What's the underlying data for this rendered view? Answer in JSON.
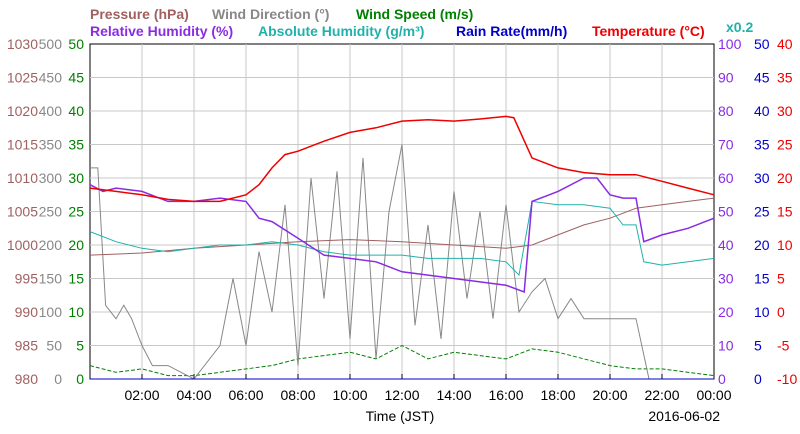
{
  "chart_data": {
    "type": "line",
    "xlabel": "Time (JST)",
    "date": "2016-06-02",
    "x_ticks": [
      "02:00",
      "04:00",
      "06:00",
      "08:00",
      "10:00",
      "12:00",
      "14:00",
      "16:00",
      "18:00",
      "20:00",
      "22:00",
      "00:00"
    ],
    "xlim_hours": [
      0,
      24
    ],
    "grid": true,
    "legend_items": [
      {
        "label": "Pressure (hPa)",
        "color": "#a06060"
      },
      {
        "label": "Wind Direction (°)",
        "color": "#888888"
      },
      {
        "label": "Wind Speed (m/s)",
        "color": "#008000"
      },
      {
        "label": "Relative Humidity (%)",
        "color": "#8a2be2"
      },
      {
        "label": "Absolute Humidity (g/m³)",
        "color": "#20b2aa"
      },
      {
        "label": "Rain Rate(mm/h)",
        "color": "#0000cc"
      },
      {
        "label": "Temperature (°C)",
        "color": "#ee0000"
      },
      {
        "label": "x0.2",
        "color": "#20b2aa"
      }
    ],
    "axes": [
      {
        "name": "Pressure (hPa)",
        "side": "left",
        "color": "#a06060",
        "ticks": [
          "1030",
          "1025",
          "1020",
          "1015",
          "1010",
          "1005",
          "1000",
          "995",
          "990",
          "985",
          "980"
        ],
        "ylim": [
          980,
          1030
        ]
      },
      {
        "name": "Wind Direction (°)",
        "side": "left",
        "color": "#888888",
        "ticks": [
          "500",
          "450",
          "400",
          "350",
          "300",
          "250",
          "200",
          "150",
          "100",
          "50",
          "0"
        ],
        "ylim": [
          0,
          500
        ]
      },
      {
        "name": "Wind Speed (m/s)",
        "side": "left",
        "color": "#008000",
        "ticks": [
          "50",
          "45",
          "40",
          "35",
          "30",
          "25",
          "20",
          "15",
          "10",
          "5",
          "0"
        ],
        "ylim": [
          0,
          50
        ]
      },
      {
        "name": "Relative Humidity (%)",
        "side": "right",
        "color": "#8a2be2",
        "ticks": [
          "100",
          "90",
          "80",
          "70",
          "60",
          "50",
          "40",
          "30",
          "20",
          "10",
          "0"
        ],
        "ylim": [
          0,
          100
        ]
      },
      {
        "name": "Rain Rate(mm/h)",
        "side": "right",
        "color": "#0000cc",
        "ticks": [
          "50",
          "45",
          "40",
          "35",
          "30",
          "25",
          "20",
          "15",
          "10",
          "5",
          "0"
        ],
        "ylim": [
          0,
          50
        ]
      },
      {
        "name": "Temperature (°C)",
        "side": "right",
        "color": "#ee0000",
        "ticks": [
          "40",
          "35",
          "30",
          "25",
          "20",
          "15",
          "10",
          "5",
          "0",
          "-5",
          "-10"
        ],
        "ylim": [
          -10,
          40
        ]
      }
    ],
    "series": [
      {
        "name": "Temperature (°C)",
        "axis": "Temperature (°C)",
        "color": "#ee0000",
        "x": [
          0,
          1,
          2,
          3,
          4,
          5,
          6,
          6.5,
          7,
          7.5,
          8,
          9,
          10,
          11,
          12,
          13,
          14,
          15,
          16,
          16.3,
          17,
          18,
          19,
          20,
          21,
          22,
          23,
          24
        ],
        "y": [
          18.5,
          18,
          17.5,
          16.8,
          16.5,
          16.5,
          17.5,
          19,
          21.5,
          23.5,
          24,
          25.5,
          26.8,
          27.5,
          28.5,
          28.7,
          28.5,
          28.8,
          29.2,
          29,
          23,
          21.5,
          20.8,
          20.5,
          20.5,
          19.5,
          18.5,
          17.5
        ]
      },
      {
        "name": "Relative Humidity (%)",
        "axis": "Relative Humidity (%)",
        "color": "#8a2be2",
        "x": [
          0,
          0.5,
          1,
          2,
          3,
          4,
          5,
          6,
          6.5,
          7,
          8,
          9,
          10,
          11,
          12,
          13,
          14,
          15,
          16,
          16.7,
          17,
          18,
          19,
          19.5,
          20,
          20.5,
          21,
          21.3,
          22,
          23,
          24
        ],
        "y": [
          58,
          56,
          57,
          56,
          53,
          53,
          54,
          53,
          48,
          47,
          42,
          37,
          36,
          35,
          32,
          31,
          30,
          29,
          28,
          26,
          53,
          56,
          60,
          60,
          55,
          54,
          54,
          41,
          43,
          45,
          48
        ]
      },
      {
        "name": "Absolute Humidity (g/m³)",
        "axis": "Relative Humidity (%)",
        "color": "#20b2aa",
        "x": [
          0,
          1,
          2,
          3,
          4,
          5,
          6,
          7,
          8,
          9,
          10,
          11,
          12,
          13,
          14,
          15,
          16,
          16.5,
          17,
          18,
          19,
          20,
          20.5,
          21,
          21.3,
          22,
          23,
          24
        ],
        "y": [
          44,
          41,
          39,
          38,
          39,
          40,
          40,
          41,
          40,
          38,
          37,
          37,
          37,
          36,
          36,
          36,
          35,
          31,
          53,
          52,
          52,
          51,
          46,
          46,
          35,
          34,
          35,
          36
        ]
      },
      {
        "name": "Pressure (hPa)",
        "axis": "Pressure (hPa)",
        "color": "#a06060",
        "x": [
          0,
          2,
          4,
          6,
          8,
          10,
          12,
          14,
          16,
          17,
          18,
          19,
          20,
          21,
          22,
          23,
          24
        ],
        "y": [
          998.5,
          998.8,
          999.5,
          1000,
          1000.5,
          1000.8,
          1000.5,
          1000,
          999.5,
          1000,
          1001.5,
          1003,
          1004,
          1005.5,
          1006,
          1006.5,
          1007
        ]
      },
      {
        "name": "Wind Direction (°)",
        "axis": "Wind Direction (°)",
        "color": "#888888",
        "x": [
          0,
          0.3,
          0.6,
          1,
          1.3,
          1.6,
          2,
          2.4,
          3,
          4,
          5,
          5.5,
          6,
          6.5,
          7,
          7.5,
          8,
          8.5,
          9,
          9.5,
          10,
          10.5,
          11,
          11.5,
          12,
          12.5,
          13,
          13.5,
          14,
          14.5,
          15,
          15.5,
          16,
          16.5,
          17,
          17.5,
          18,
          18.5,
          19,
          20,
          21,
          21.5,
          22,
          22.5,
          23,
          24
        ],
        "y": [
          315,
          315,
          110,
          90,
          110,
          90,
          50,
          20,
          20,
          0,
          50,
          150,
          50,
          190,
          100,
          260,
          20,
          300,
          120,
          310,
          60,
          330,
          30,
          250,
          350,
          80,
          230,
          60,
          280,
          120,
          250,
          90,
          260,
          100,
          130,
          150,
          90,
          120,
          90,
          90,
          90,
          0,
          0,
          0,
          0,
          0
        ]
      },
      {
        "name": "Wind Speed (m/s)",
        "axis": "Wind Speed (m/s)",
        "color": "#008000",
        "x": [
          0,
          1,
          2,
          3,
          4,
          5,
          6,
          7,
          8,
          9,
          10,
          11,
          12,
          13,
          14,
          15,
          16,
          17,
          18,
          19,
          20,
          21,
          22,
          23,
          24
        ],
        "y": [
          2,
          1,
          1.5,
          0.5,
          0.5,
          1,
          1.5,
          2,
          3,
          3.5,
          4,
          3,
          5,
          3,
          4,
          3.5,
          3,
          4.5,
          4,
          3,
          2,
          1.5,
          1.5,
          1,
          0.5
        ]
      },
      {
        "name": "Rain Rate(mm/h)",
        "axis": "Rain Rate(mm/h)",
        "color": "#0000cc",
        "x": [
          0,
          24
        ],
        "y": [
          0,
          0
        ]
      }
    ]
  }
}
